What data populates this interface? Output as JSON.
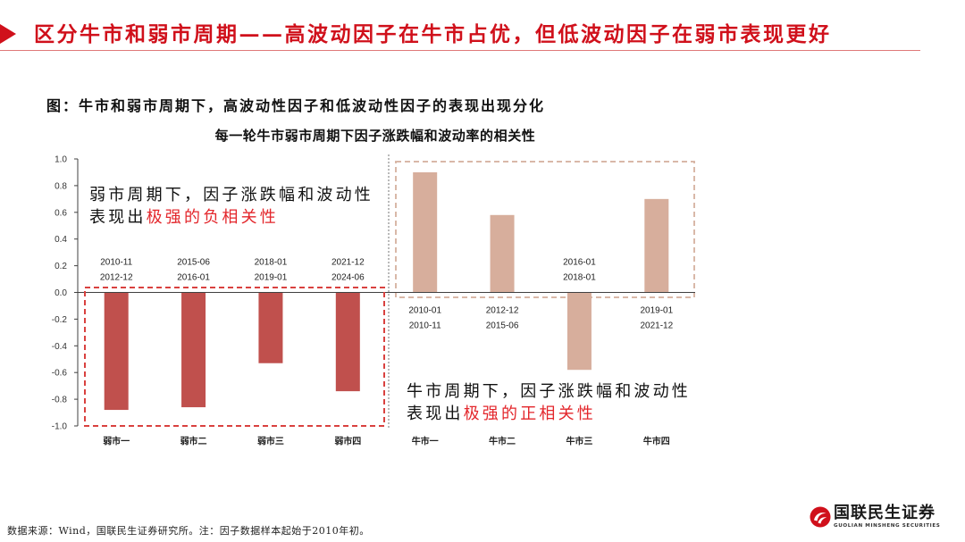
{
  "header": {
    "title": "区分牛市和弱市周期——高波动因子在牛市占优，但低波动因子在弱市表现更好",
    "accent_color": "#D0101B"
  },
  "figure": {
    "caption": "图：牛市和弱市周期下，高波动性因子和低波动性因子的表现出现分化"
  },
  "chart_data": {
    "type": "bar",
    "title": "每一轮牛市弱市周期下因子涨跌幅和波动率的相关性",
    "categories": [
      "弱市一",
      "弱市二",
      "弱市三",
      "弱市四",
      "牛市一",
      "牛市二",
      "牛市三",
      "牛市四"
    ],
    "values": [
      -0.88,
      -0.86,
      -0.53,
      -0.74,
      0.9,
      0.58,
      -0.58,
      0.7
    ],
    "colors": [
      "#C0504D",
      "#C0504D",
      "#C0504D",
      "#C0504D",
      "#D7AE9C",
      "#D7AE9C",
      "#D7AE9C",
      "#D7AE9C"
    ],
    "periods": [
      [
        "2010-11",
        "2012-12"
      ],
      [
        "2015-06",
        "2016-01"
      ],
      [
        "2018-01",
        "2019-01"
      ],
      [
        "2021-12",
        "2024-06"
      ],
      [
        "2010-01",
        "2010-11"
      ],
      [
        "2012-12",
        "2015-06"
      ],
      [
        "2016-01",
        "2018-01"
      ],
      [
        "2019-01",
        "2021-12"
      ]
    ],
    "ylim": [
      -1.0,
      1.0
    ],
    "yticks": [
      "1.0",
      "0.8",
      "0.6",
      "0.4",
      "0.2",
      "0.0",
      "-0.2",
      "-0.4",
      "-0.6",
      "-0.8",
      "-1.0"
    ],
    "grid": false
  },
  "annotations": {
    "weak": {
      "line1": "弱市周期下，因子涨跌幅和波动性",
      "line2_prefix": "表现出",
      "line2_highlight": "极强的负相关性"
    },
    "bull": {
      "line1": "牛市周期下，因子涨跌幅和波动性",
      "line2_prefix": "表现出",
      "line2_highlight": "极强的正相关性"
    },
    "highlight_color": "#E3262B"
  },
  "footer": {
    "source": "数据来源：Wind，国联民生证券研究所。注：因子数据样本起始于2010年初。"
  },
  "logo": {
    "name": "国联民生证券",
    "subtitle": "GUOLIAN MINSHENG SECURITIES",
    "color": "#D0101B"
  }
}
